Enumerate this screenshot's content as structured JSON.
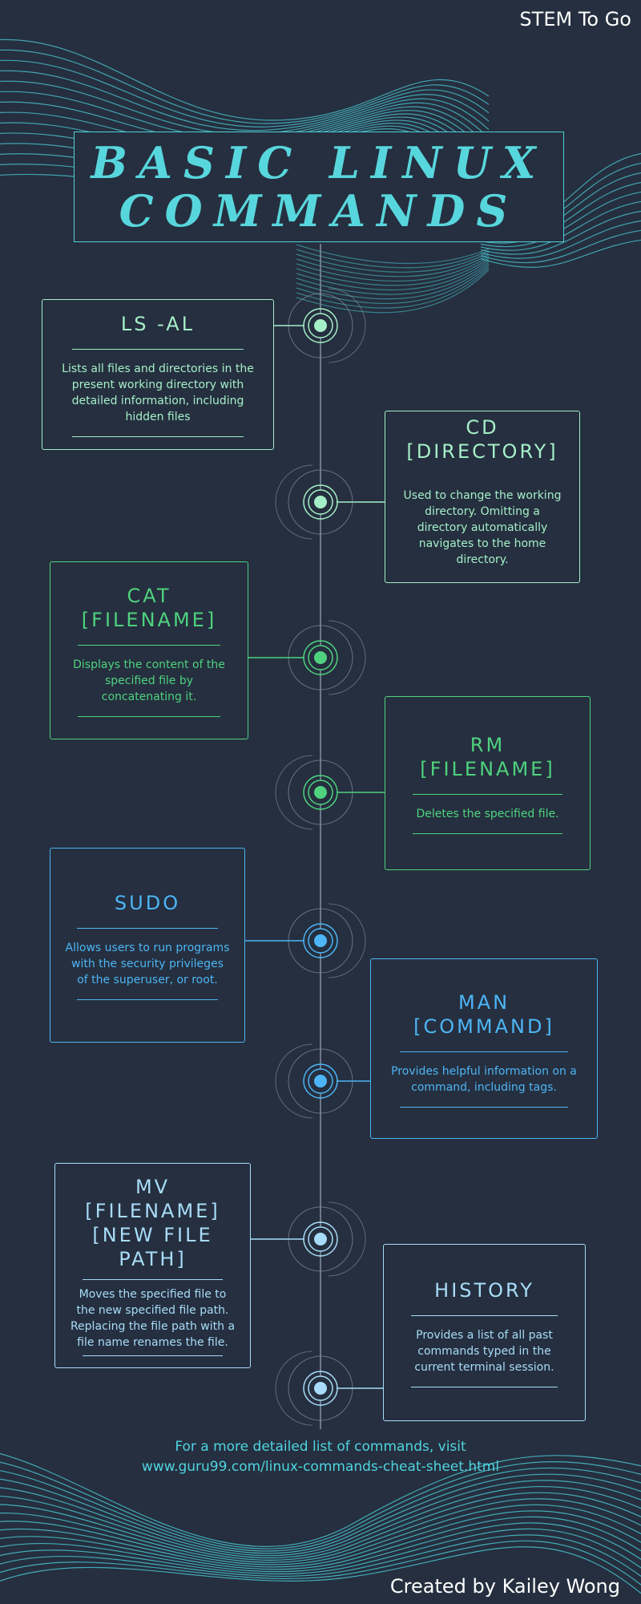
{
  "brand": "STEM To Go",
  "title_lines": [
    "BASIC LINUX",
    "COMMANDS"
  ],
  "colors": {
    "background": "#252f3f",
    "title": "#58d6dd",
    "mint": "#a5efc8",
    "green": "#4fd27e",
    "blue": "#4db5f5",
    "light_blue": "#a8dcf8",
    "footer": "#4fd4df"
  },
  "commands": [
    {
      "name": "LS -AL",
      "description": "Lists all files and directories in the present working directory with detailed information, including hidden files",
      "color": "#a5efc8"
    },
    {
      "name": "CD\n[DIRECTORY]",
      "description": "Used to change the working directory. Omitting a directory automatically navigates to the home directory.",
      "color": "#a5efc8"
    },
    {
      "name": "CAT\n[FILENAME]",
      "description": "Displays the content of the specified file by concatenating it.",
      "color": "#4fd27e"
    },
    {
      "name": "RM\n[FILENAME]",
      "description": "Deletes the specified file.",
      "color": "#4fd27e"
    },
    {
      "name": "SUDO",
      "description": "Allows users to run programs with the security privileges of the superuser, or root.",
      "color": "#4db5f5"
    },
    {
      "name": "MAN\n[COMMAND]",
      "description": "Provides helpful information on a command, including tags.",
      "color": "#4db5f5"
    },
    {
      "name": "MV [FILENAME]\n[NEW FILE\nPATH]",
      "description": "Moves the specified file to the new specified file path. Replacing the file path with a file name renames the file.",
      "color": "#a8dcf8"
    },
    {
      "name": "HISTORY",
      "description": "Provides a list of all past commands typed in the current terminal session.",
      "color": "#a8dcf8"
    }
  ],
  "footer": {
    "line1": "For a more detailed list of commands, visit",
    "line2": "www.guru99.com/linux-commands-cheat-sheet.html"
  },
  "credit": "Created by Kailey Wong"
}
